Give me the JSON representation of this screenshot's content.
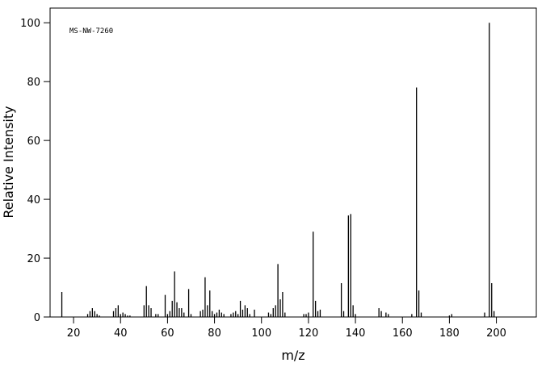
{
  "chart_data": {
    "type": "stem",
    "annotation": "MS-NW-7260",
    "xlabel": "m/z",
    "ylabel": "Relative Intensity",
    "color": "#000000",
    "x": [
      15,
      26,
      27,
      28,
      29,
      30,
      31,
      37,
      38,
      39,
      40,
      41,
      42,
      43,
      44,
      50,
      51,
      52,
      53,
      55,
      56,
      59,
      60,
      61,
      62,
      63,
      64,
      65,
      66,
      67,
      69,
      70,
      74,
      75,
      76,
      77,
      78,
      79,
      80,
      81,
      82,
      83,
      84,
      87,
      88,
      89,
      90,
      91,
      92,
      93,
      94,
      95,
      97,
      103,
      104,
      105,
      106,
      107,
      108,
      109,
      110,
      118,
      119,
      120,
      122,
      123,
      124,
      125,
      134,
      135,
      137,
      138,
      139,
      140,
      150,
      151,
      153,
      154,
      164,
      166,
      167,
      168,
      180,
      181,
      195,
      197,
      198,
      199
    ],
    "values": [
      8.5,
      1,
      2,
      3,
      2,
      1,
      0.5,
      2,
      3,
      4,
      1,
      1.5,
      1,
      0.5,
      0.5,
      4,
      10.5,
      4,
      3,
      1,
      1,
      7.5,
      1,
      2,
      5.5,
      15.5,
      5,
      3,
      3,
      1.5,
      9.5,
      1,
      2,
      2.5,
      13.5,
      4,
      9,
      2,
      1,
      1.5,
      2.5,
      1.5,
      1,
      1,
      1.5,
      2,
      1,
      5.5,
      2.5,
      4,
      3,
      1,
      2.5,
      1.5,
      1,
      3,
      4,
      18,
      6,
      8.5,
      1.5,
      1,
      1,
      1.5,
      29,
      5.5,
      2,
      2.5,
      11.5,
      2,
      34.5,
      35,
      4,
      1,
      3,
      2,
      1.5,
      1,
      1,
      78,
      9,
      1.5,
      0.5,
      1,
      1.5,
      100,
      11.5,
      2
    ],
    "xlim": [
      10,
      217
    ],
    "ylim": [
      0,
      105
    ],
    "xticks": [
      20,
      40,
      60,
      80,
      100,
      120,
      140,
      160,
      180,
      200
    ],
    "yticks": [
      0,
      20,
      40,
      60,
      80,
      100
    ]
  }
}
